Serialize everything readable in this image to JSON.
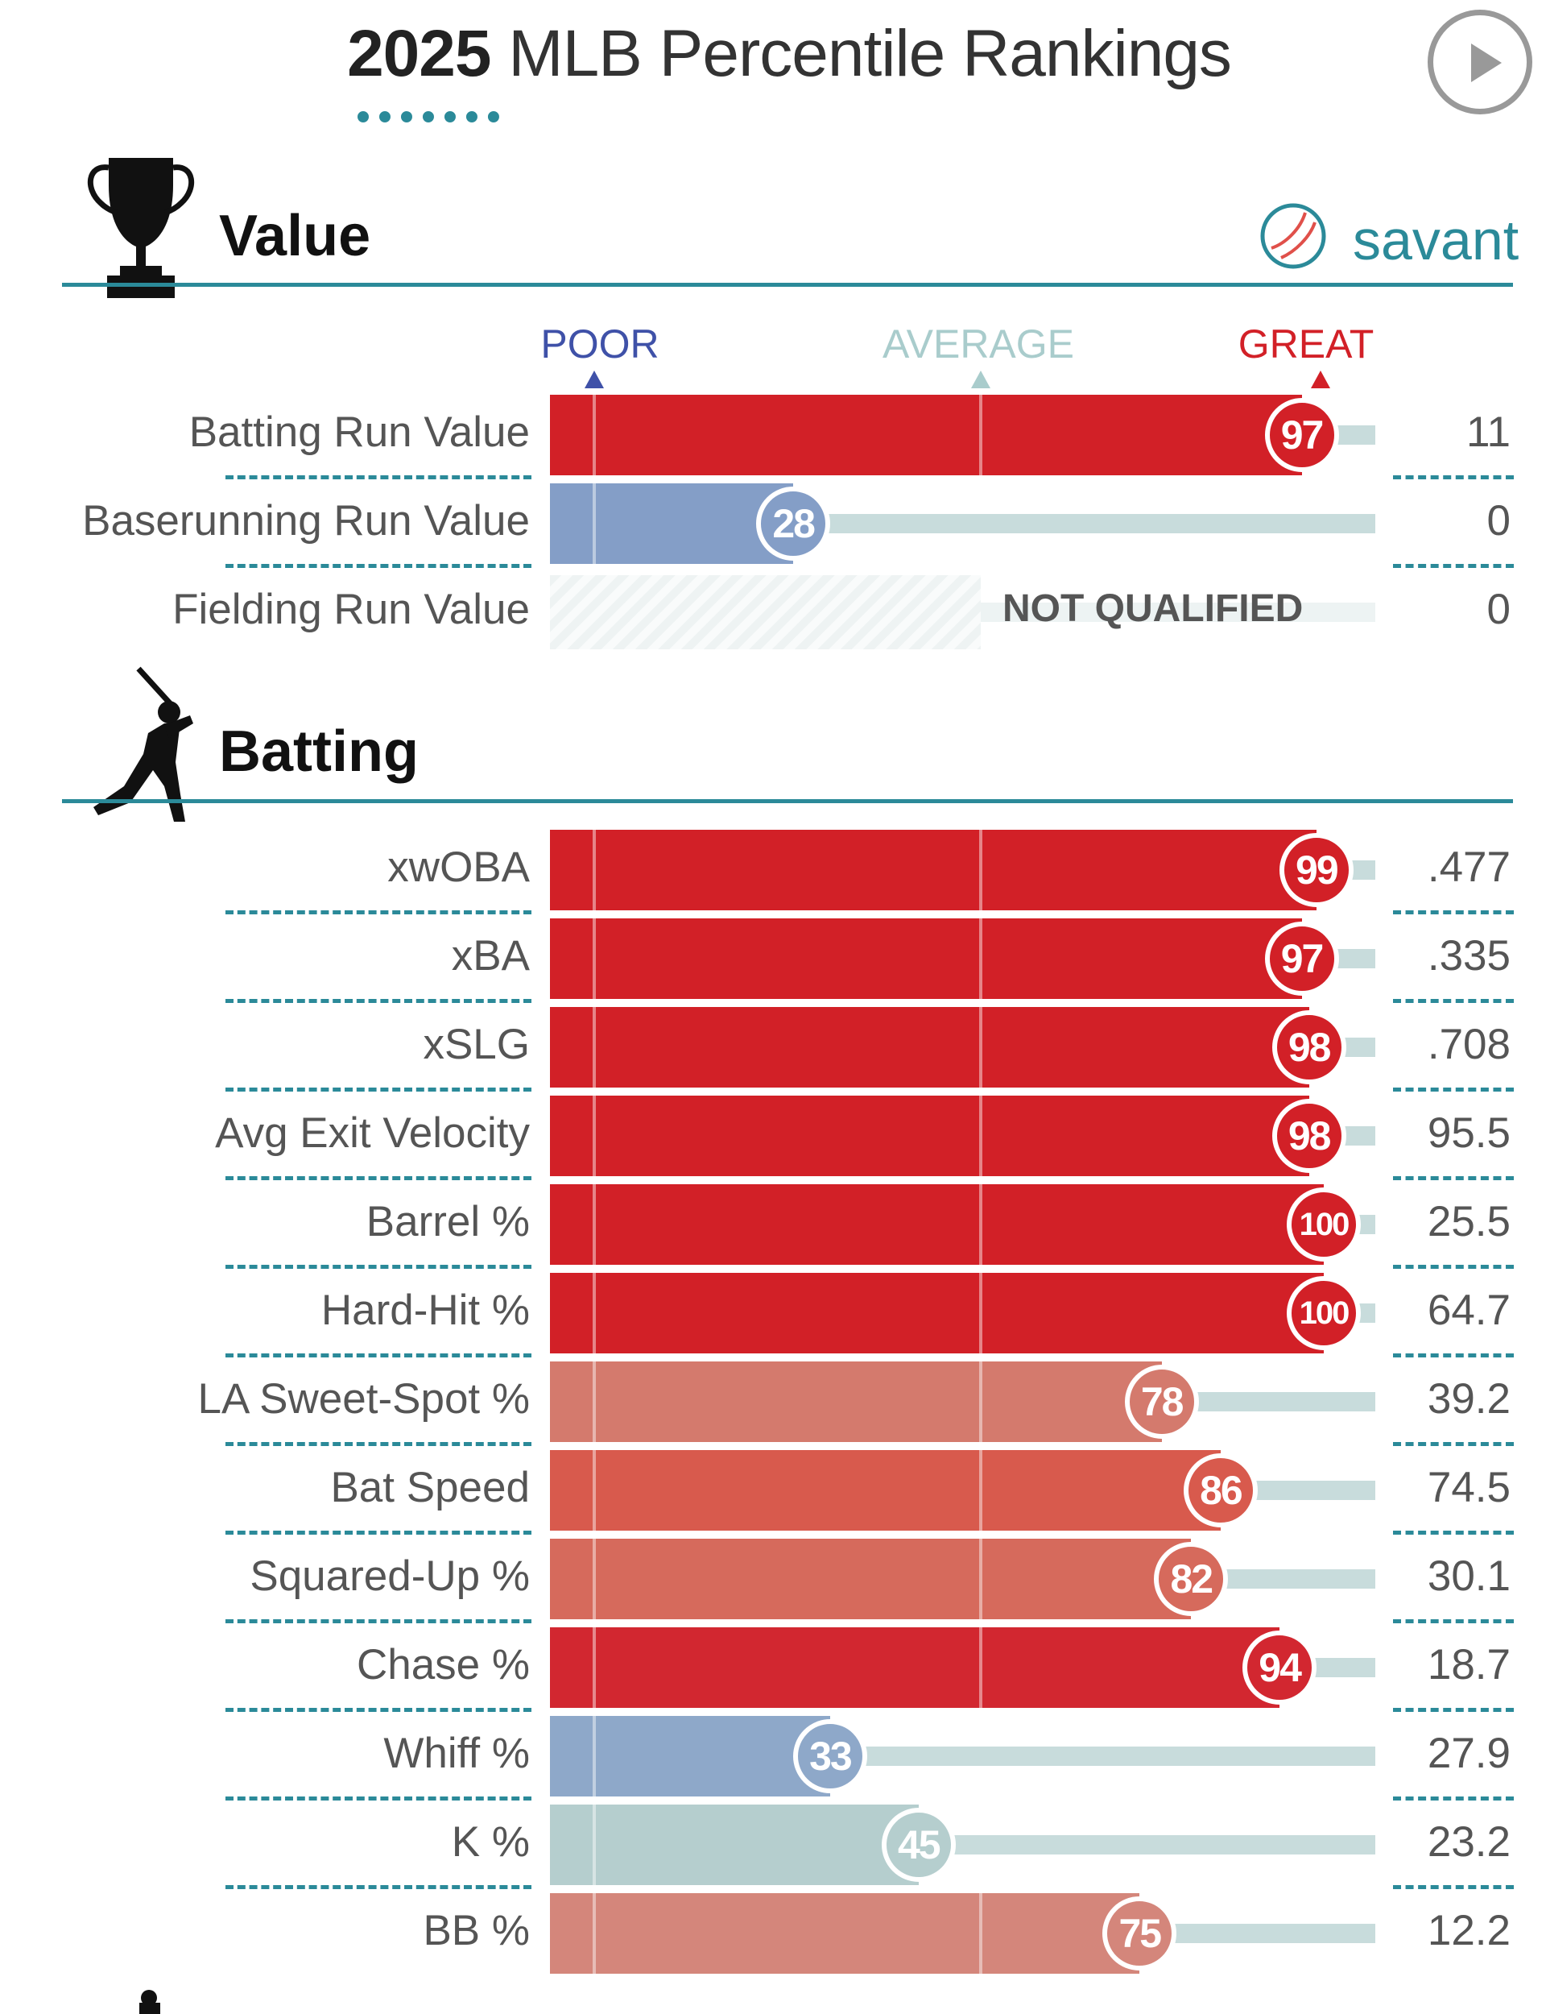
{
  "header": {
    "title_year": "2025",
    "title_rest": " MLB Percentile Rankings",
    "play_icon": "play-icon"
  },
  "sections": [
    {
      "title": "Value",
      "icon": "trophy-icon"
    },
    {
      "title": "Batting",
      "icon": "batter-icon"
    }
  ],
  "logo": {
    "text": "savant",
    "icon": "baseball-icon"
  },
  "chart_data": {
    "type": "bar",
    "orientation": "horizontal",
    "title": "2025 MLB Percentile Rankings",
    "scale_labels": [
      "POOR",
      "AVERAGE",
      "GREAT"
    ],
    "xlim": [
      0,
      100
    ],
    "groups": [
      {
        "name": "Value",
        "rows": [
          {
            "label": "Batting Run Value",
            "percentile": 97,
            "value": "11",
            "color": "#d22027"
          },
          {
            "label": "Baserunning Run Value",
            "percentile": 28,
            "value": "0",
            "color": "#849ec7"
          },
          {
            "label": "Fielding Run Value",
            "percentile": null,
            "value": "0",
            "note": "NOT QUALIFIED"
          }
        ]
      },
      {
        "name": "Batting",
        "rows": [
          {
            "label": "xwOBA",
            "percentile": 99,
            "value": ".477",
            "color": "#d22027"
          },
          {
            "label": "xBA",
            "percentile": 97,
            "value": ".335",
            "color": "#d22027"
          },
          {
            "label": "xSLG",
            "percentile": 98,
            "value": ".708",
            "color": "#d22027"
          },
          {
            "label": "Avg Exit Velocity",
            "percentile": 98,
            "value": "95.5",
            "color": "#d22027"
          },
          {
            "label": "Barrel %",
            "percentile": 100,
            "value": "25.5",
            "color": "#d22027"
          },
          {
            "label": "Hard-Hit %",
            "percentile": 100,
            "value": "64.7",
            "color": "#d22027"
          },
          {
            "label": "LA Sweet-Spot %",
            "percentile": 78,
            "value": "39.2",
            "color": "#d47a6d"
          },
          {
            "label": "Bat Speed",
            "percentile": 86,
            "value": "74.5",
            "color": "#d85a4d"
          },
          {
            "label": "Squared-Up %",
            "percentile": 82,
            "value": "30.1",
            "color": "#d66a5c"
          },
          {
            "label": "Chase %",
            "percentile": 94,
            "value": "18.7",
            "color": "#d22730"
          },
          {
            "label": "Whiff %",
            "percentile": 33,
            "value": "27.9",
            "color": "#8ea8c9"
          },
          {
            "label": "K %",
            "percentile": 45,
            "value": "23.2",
            "color": "#b5cece"
          },
          {
            "label": "BB %",
            "percentile": 75,
            "value": "12.2",
            "color": "#d4867b"
          }
        ]
      }
    ]
  },
  "colors": {
    "accent": "#2b8a99",
    "poor": "#3f51a8",
    "average": "#a9cccc",
    "great": "#d22027",
    "track": "#c8dcdc"
  }
}
